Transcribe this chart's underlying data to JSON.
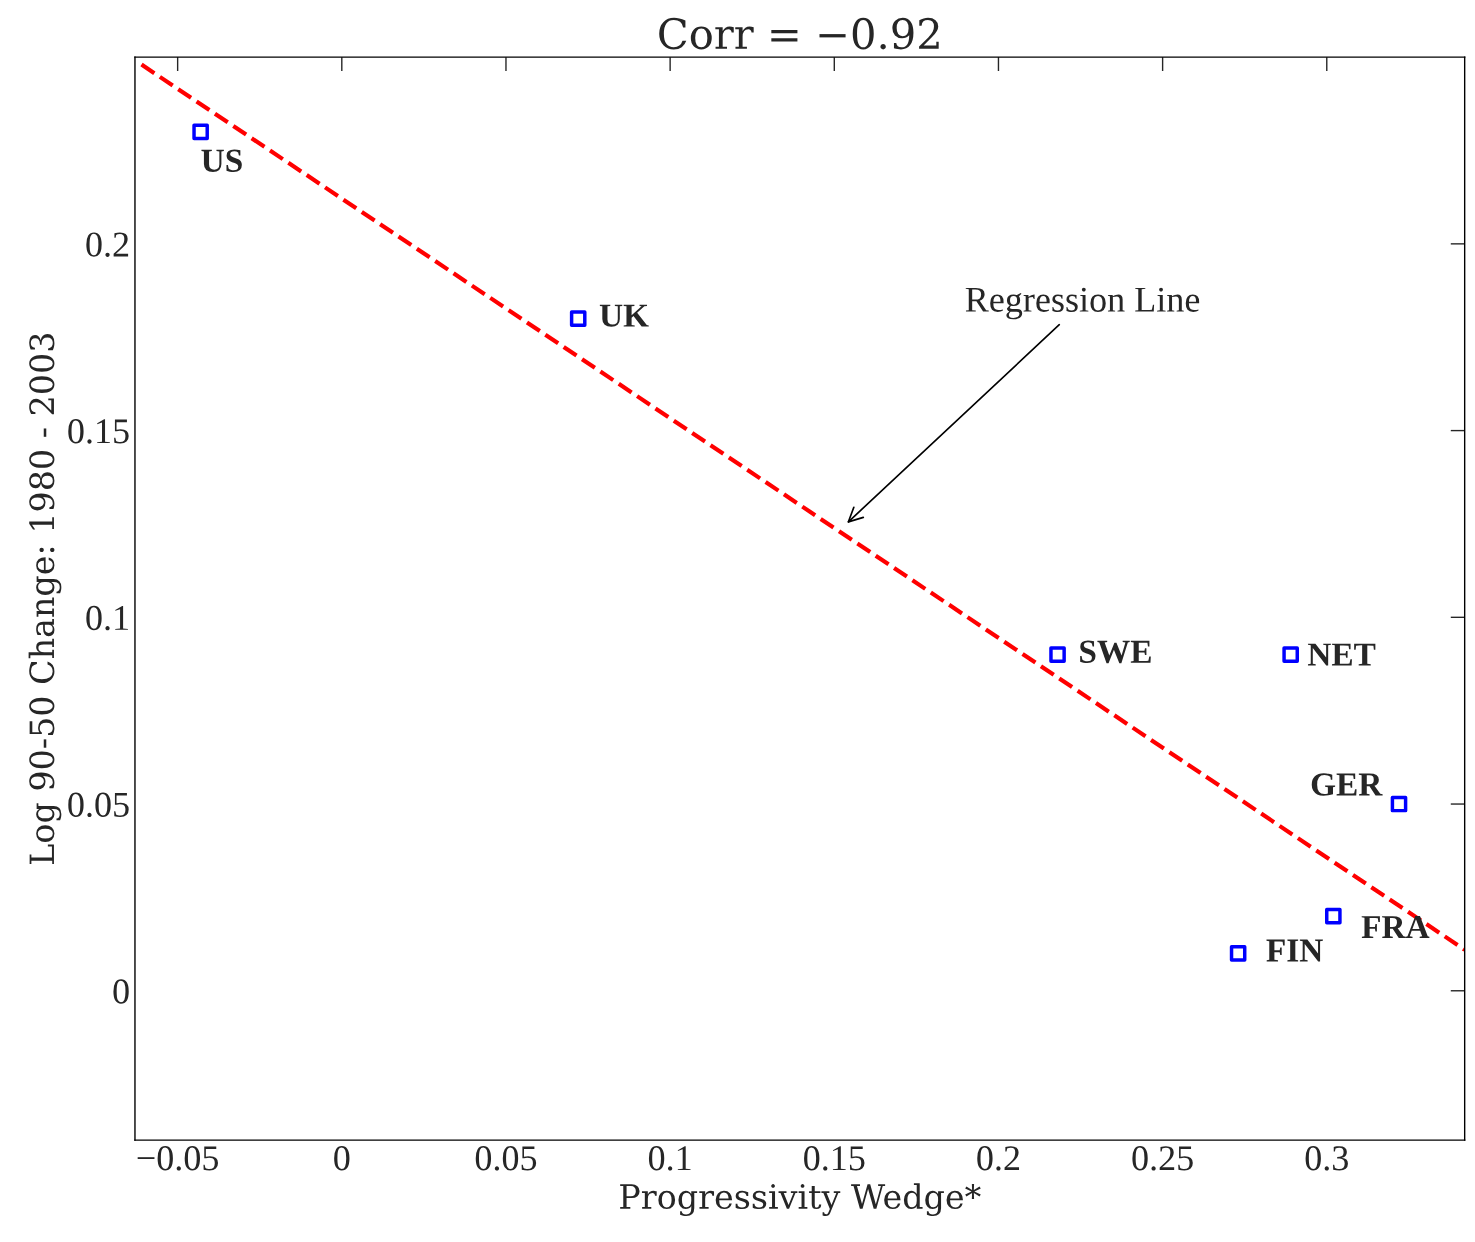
{
  "chart_data": {
    "type": "scatter",
    "title": "Corr = −0.92",
    "xlabel": "Progressivity Wedge*",
    "ylabel": "Log 90-50 Change: 1980 - 2003",
    "xlim": [
      -0.063,
      0.342
    ],
    "ylim": [
      -0.04,
      0.25
    ],
    "xticks": [
      {
        "value": -0.05,
        "label": "−0.05"
      },
      0,
      0.05,
      0.1,
      0.15,
      0.2,
      0.25,
      0.3
    ],
    "yticks": [
      0,
      0.05,
      0.1,
      0.15,
      0.2
    ],
    "grid": false,
    "marker": "square",
    "series": [
      {
        "color": "#0000ff",
        "x": [
          -0.043,
          0.072,
          0.218,
          0.289,
          0.322,
          0.302,
          0.273
        ],
        "values": [
          0.23,
          0.18,
          0.09,
          0.09,
          0.05,
          0.02,
          0.01
        ]
      },
      {
        "type": "line",
        "color": "#ff0000",
        "line_style": "dashed",
        "marker": "none",
        "x": [
          -0.061,
          0.342
        ],
        "values": [
          0.248,
          0.011
        ]
      }
    ],
    "annotations": [
      {
        "text": "US",
        "x": -0.043,
        "y": 0.23
      },
      {
        "text": "UK",
        "x": 0.072,
        "y": 0.18
      },
      {
        "text": "SWE",
        "x": 0.218,
        "y": 0.09
      },
      {
        "text": "NET",
        "x": 0.289,
        "y": 0.09
      },
      {
        "text": "GER",
        "x": 0.322,
        "y": 0.05
      },
      {
        "text": "FRA",
        "x": 0.302,
        "y": 0.02
      },
      {
        "text": "FIN",
        "x": 0.273,
        "y": 0.01
      },
      "Regression Line"
    ]
  }
}
